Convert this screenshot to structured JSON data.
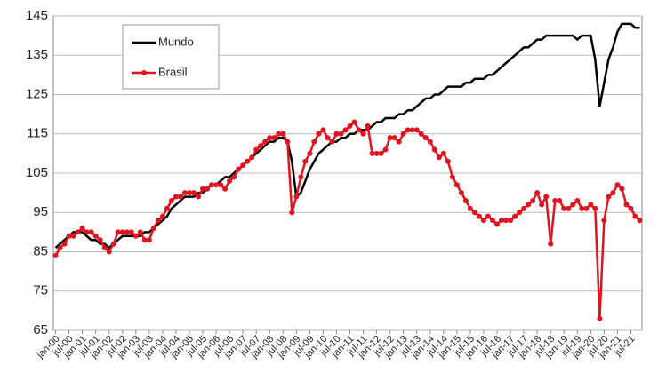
{
  "chart_data": {
    "type": "line",
    "categories": [
      "jan-00",
      null,
      null,
      "jul-00",
      null,
      null,
      "jan-01",
      null,
      null,
      "jul-01",
      null,
      null,
      "jan-02",
      null,
      null,
      "jul-02",
      null,
      null,
      "jan-03",
      null,
      null,
      "jul-03",
      null,
      null,
      "jan-04",
      null,
      null,
      "jul-04",
      null,
      null,
      "jan-05",
      null,
      null,
      "jul-05",
      null,
      null,
      "jan-06",
      null,
      null,
      "jul-06",
      null,
      null,
      "jan-07",
      null,
      null,
      "jul-07",
      null,
      null,
      "jan-08",
      null,
      null,
      "jul-08",
      null,
      null,
      "jan-09",
      null,
      null,
      "jul-09",
      null,
      null,
      "jan-10",
      null,
      null,
      "jul-10",
      null,
      null,
      "jan-11",
      null,
      null,
      "jul-11",
      null,
      null,
      "jan-12",
      null,
      null,
      "jul-12",
      null,
      null,
      "jan-13",
      null,
      null,
      "jul-13",
      null,
      null,
      "jan-14",
      null,
      null,
      "jul-14",
      null,
      null,
      "jan-15",
      null,
      null,
      "jul-15",
      null,
      null,
      "jan-16",
      null,
      null,
      "jul-16",
      null,
      null,
      "jan-17",
      null,
      null,
      "jul-17",
      null,
      null,
      "jan-18",
      null,
      null,
      "jul-18",
      null,
      null,
      "jan-19",
      null,
      null,
      "jul-19",
      null,
      null,
      "jan-20",
      null,
      null,
      "jul-20",
      null,
      null,
      "jan-21",
      null,
      null,
      "jul-21",
      null,
      null
    ],
    "series": [
      {
        "name": "Mundo",
        "color": "#000000",
        "markers": false,
        "values": [
          86,
          87,
          88,
          89,
          90,
          90,
          90,
          89,
          88,
          88,
          87,
          87,
          86,
          87,
          88,
          89,
          89,
          89,
          89,
          89,
          90,
          90,
          91,
          92,
          93,
          94,
          96,
          97,
          98,
          99,
          99,
          99,
          100,
          100,
          101,
          102,
          102,
          103,
          104,
          104,
          105,
          106,
          107,
          108,
          109,
          110,
          111,
          112,
          113,
          113,
          114,
          114,
          113,
          108,
          99,
          100,
          103,
          106,
          108,
          110,
          111,
          112,
          113,
          113,
          114,
          114,
          115,
          115,
          116,
          116,
          116,
          117,
          118,
          118,
          119,
          119,
          119,
          120,
          120,
          121,
          121,
          122,
          123,
          124,
          124,
          125,
          125,
          126,
          127,
          127,
          127,
          127,
          128,
          128,
          129,
          129,
          129,
          130,
          130,
          131,
          132,
          133,
          134,
          135,
          136,
          137,
          137,
          138,
          139,
          139,
          140,
          140,
          140,
          140,
          140,
          140,
          140,
          139,
          140,
          140,
          140,
          134,
          122,
          128,
          134,
          137,
          141,
          143,
          143,
          143,
          142,
          142
        ]
      },
      {
        "name": "Brasil",
        "color": "#e0141e",
        "markers": true,
        "values": [
          84,
          86,
          87,
          89,
          89,
          90,
          91,
          90,
          90,
          89,
          88,
          86,
          85,
          87,
          90,
          90,
          90,
          90,
          89,
          90,
          88,
          88,
          91,
          93,
          94,
          96,
          98,
          99,
          99,
          100,
          100,
          100,
          99,
          101,
          101,
          102,
          102,
          102,
          101,
          103,
          104,
          106,
          107,
          108,
          109,
          111,
          112,
          113,
          114,
          114,
          115,
          115,
          113,
          95,
          99,
          104,
          108,
          110,
          113,
          115,
          116,
          114,
          113,
          115,
          115,
          116,
          117,
          118,
          116,
          115,
          117,
          110,
          110,
          110,
          111,
          114,
          114,
          113,
          115,
          116,
          116,
          116,
          115,
          114,
          113,
          111,
          109,
          110,
          108,
          104,
          102,
          100,
          98,
          96,
          95,
          94,
          93,
          94,
          93,
          92,
          93,
          93,
          93,
          94,
          95,
          96,
          97,
          98,
          100,
          97,
          99,
          87,
          98,
          98,
          96,
          96,
          97,
          98,
          96,
          96,
          97,
          96,
          68,
          93,
          99,
          100,
          102,
          101,
          97,
          96,
          94,
          93
        ]
      }
    ],
    "ylim": [
      65,
      145
    ],
    "yticks": [
      65,
      75,
      85,
      95,
      105,
      115,
      125,
      135,
      145
    ],
    "grid": true,
    "legend": "top-left"
  }
}
